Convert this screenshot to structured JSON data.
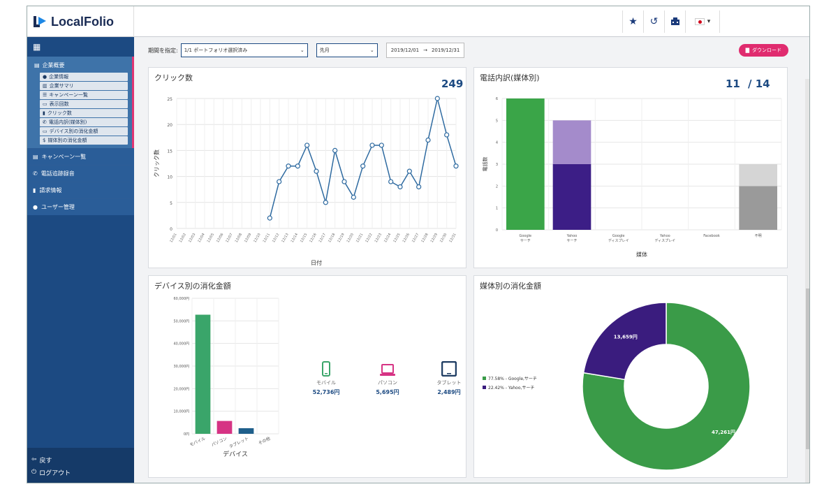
{
  "app": {
    "brand": "LocalFolio"
  },
  "sidebar": {
    "group_label": "企業概要",
    "sub_items": [
      {
        "label": "企業情報",
        "icon": "info-icon"
      },
      {
        "label": "企業サマリ",
        "icon": "chart-icon"
      },
      {
        "label": "キャンペーン一覧",
        "icon": "list-icon"
      },
      {
        "label": "表示回数",
        "icon": "monitor-icon"
      },
      {
        "label": "クリック数",
        "icon": "mouse-icon"
      },
      {
        "label": "電話内訳(媒体別)",
        "icon": "phone-icon"
      },
      {
        "label": "デバイス別の消化金額",
        "icon": "laptop-icon"
      },
      {
        "label": "媒体別の消化金額",
        "icon": "dollar-icon"
      }
    ],
    "items": [
      {
        "label": "キャンペーン一覧",
        "icon": "list-icon"
      },
      {
        "label": "電話追跡録音",
        "icon": "phone-icon"
      },
      {
        "label": "請求情報",
        "icon": "document-icon"
      },
      {
        "label": "ユーザー管理",
        "icon": "user-icon"
      }
    ],
    "bottom": {
      "back": "戻す",
      "logout": "ログアウト"
    }
  },
  "filters": {
    "period_label": "期間を指定:",
    "portfolio_select": "1/1 ポートフォリオ選択済み",
    "month_select": "先月",
    "date_from": "2019/12/01",
    "date_to": "2019/12/31",
    "download": "ダウンロード"
  },
  "clicks_card": {
    "title": "クリック数",
    "total": "249"
  },
  "calls_card": {
    "title": "電話内訳(媒体別)",
    "count": "11",
    "total": "/ 14"
  },
  "device_card": {
    "title": "デバイス別の消化金額",
    "devices": [
      {
        "name": "モバイル",
        "value": "52,736円",
        "color": "#3aa56a",
        "icon": "mobile-icon"
      },
      {
        "name": "パソコン",
        "value": "5,695円",
        "color": "#d63384",
        "icon": "laptop-icon"
      },
      {
        "name": "タブレット",
        "value": "2,489円",
        "color": "#1f3d63",
        "icon": "tablet-icon"
      }
    ]
  },
  "media_card": {
    "title": "媒体別の消化金額",
    "legend": [
      {
        "label": "77.58% - Google,サーチ",
        "color": "#3a9b48"
      },
      {
        "label": "22.42% - Yahoo,サーチ",
        "color": "#3a1c7e"
      }
    ],
    "labels": {
      "google": "47,261円",
      "yahoo": "13,659円"
    }
  },
  "chart_data": [
    {
      "type": "line",
      "title": "クリック数",
      "xlabel": "日付",
      "ylabel": "クリック数",
      "ylim": [
        0,
        25
      ],
      "yticks": [
        0,
        5,
        10,
        15,
        20,
        25
      ],
      "x": [
        "12/01",
        "12/02",
        "12/03",
        "12/04",
        "12/05",
        "12/06",
        "12/07",
        "12/08",
        "12/09",
        "12/10",
        "12/11",
        "12/12",
        "12/13",
        "12/14",
        "12/15",
        "12/16",
        "12/17",
        "12/18",
        "12/19",
        "12/20",
        "12/21",
        "12/22",
        "12/23",
        "12/24",
        "12/25",
        "12/26",
        "12/27",
        "12/28",
        "12/29",
        "12/30",
        "12/31"
      ],
      "series": [
        {
          "values": [
            null,
            null,
            null,
            null,
            null,
            null,
            null,
            null,
            null,
            null,
            2,
            9,
            12,
            12,
            16,
            11,
            5,
            15,
            9,
            6,
            12,
            16,
            16,
            9,
            8,
            11,
            8,
            17,
            25,
            18,
            12
          ],
          "color": "#2e6aa0"
        }
      ]
    },
    {
      "type": "bar",
      "stacked": true,
      "xlabel": "媒体",
      "ylabel": "電話数",
      "ylim": [
        0,
        6
      ],
      "yticks": [
        0,
        1,
        2,
        3,
        4,
        5,
        6
      ],
      "categories": [
        [
          "Google",
          "サーチ"
        ],
        [
          "Yahoo",
          "サーチ"
        ],
        [
          "Google",
          "ディスプレイ"
        ],
        [
          "Yahoo",
          "ディスプレイ"
        ],
        [
          "Facebook",
          ""
        ],
        [
          "不明",
          ""
        ]
      ],
      "segments": [
        {
          "values": [
            6,
            3,
            0,
            0,
            0,
            2
          ],
          "colors": [
            "#3aa548",
            "#3c1e86",
            "#3aa548",
            "#3c1e86",
            "#777777",
            "#9a9a9a"
          ]
        },
        {
          "values": [
            0,
            2,
            0,
            0,
            0,
            1
          ],
          "colors": [
            "#7ed08b",
            "#a48bcb",
            "#7ed08b",
            "#a48bcb",
            "#bbbbbb",
            "#d5d5d5"
          ]
        }
      ]
    },
    {
      "type": "bar",
      "xlabel": "デバイス",
      "ylim": [
        0,
        60000
      ],
      "yticks": [
        "0円",
        "10,000円",
        "20,000円",
        "30,000円",
        "40,000円",
        "50,000円",
        "60,000円"
      ],
      "categories": [
        "モバイル",
        "パソコン",
        "タブレット",
        "その他"
      ],
      "values": [
        52736,
        5695,
        2489,
        0
      ],
      "colors": [
        "#3aa56a",
        "#d63384",
        "#1f5f8b",
        "#999999"
      ]
    },
    {
      "type": "pie",
      "donut": true,
      "labels": [
        "Google,サーチ",
        "Yahoo,サーチ"
      ],
      "values": [
        47261,
        13659
      ],
      "percentages": [
        77.58,
        22.42
      ],
      "colors": [
        "#3a9b48",
        "#3a1c7e"
      ]
    }
  ]
}
